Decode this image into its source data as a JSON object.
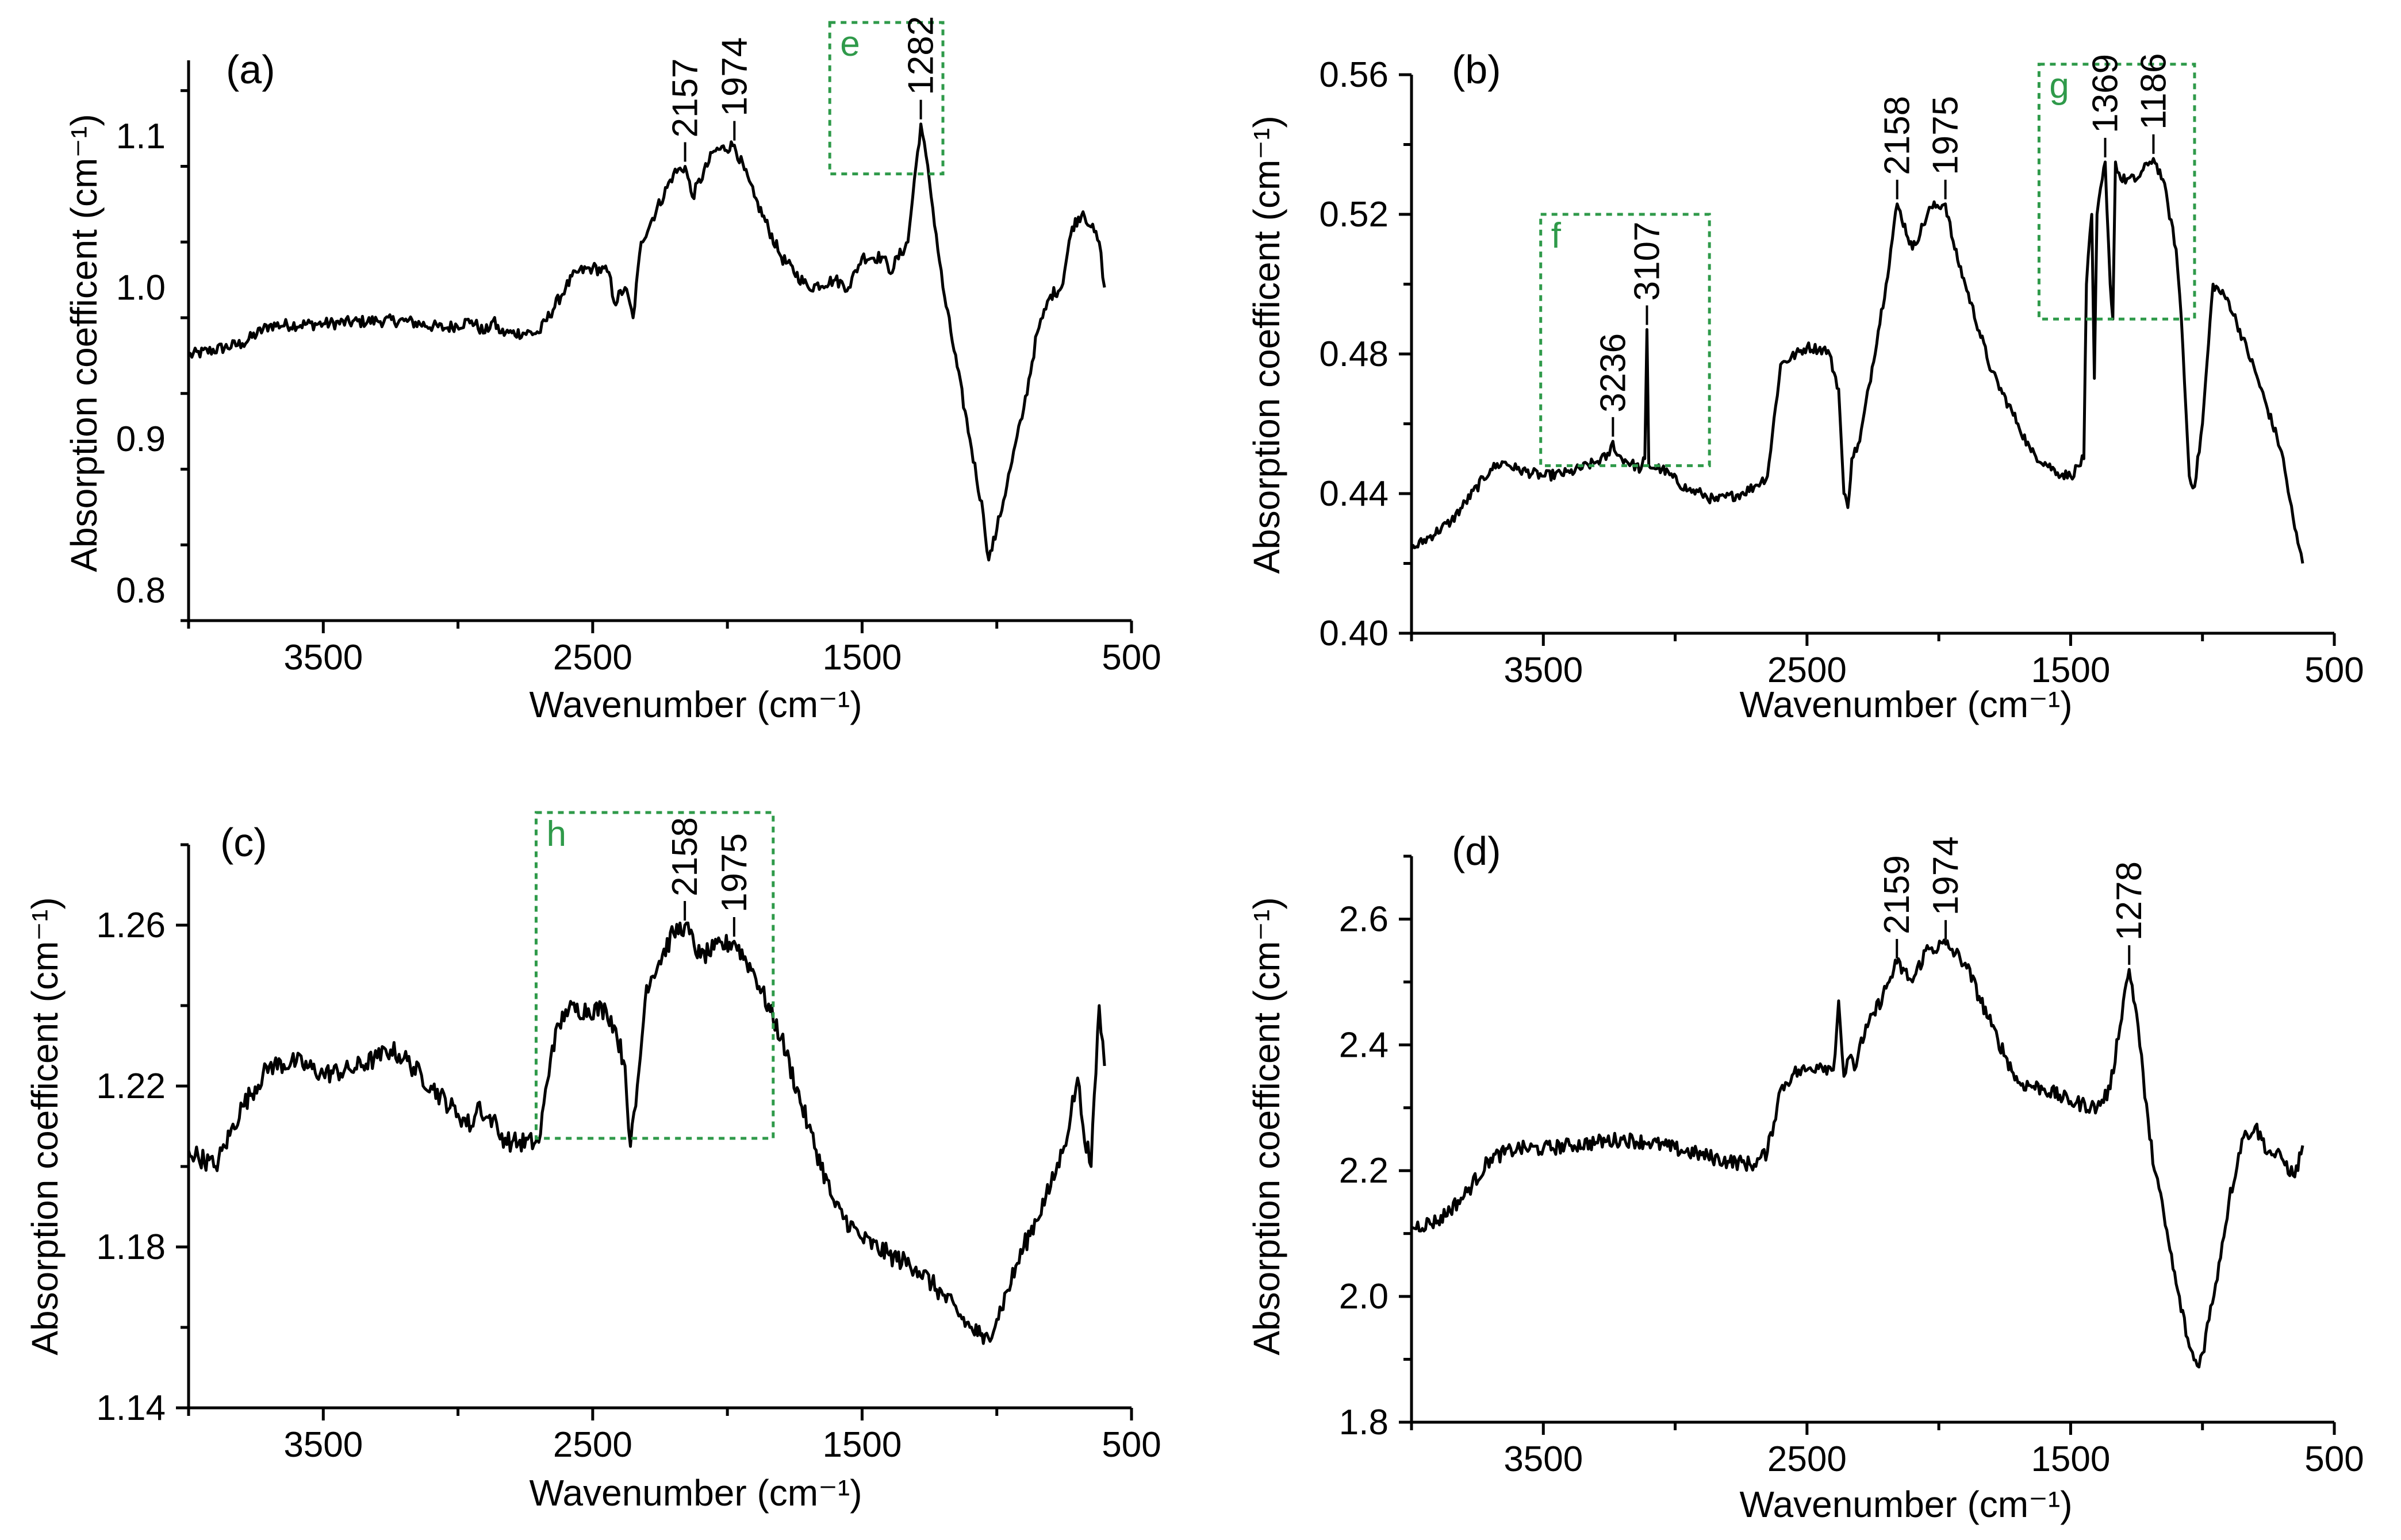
{
  "colors": {
    "line": "#000000",
    "inset": "#2f9a4a",
    "background": "#ffffff"
  },
  "chart_data": [
    {
      "type": "line",
      "panel": "(a)",
      "xlabel": "Wavenumber (cm⁻¹)",
      "ylabel": "Absorption coefficent (cm⁻¹)",
      "xlim": [
        4000,
        500
      ],
      "ylim": [
        0.78,
        1.15
      ],
      "xticks": [
        3500,
        2500,
        1500,
        500
      ],
      "yticks": [
        0.8,
        0.9,
        1.0,
        1.1
      ],
      "ytick_labels": [
        "0.8",
        "0.9",
        "1.0",
        "1.1"
      ],
      "series": [
        {
          "name": "spectrum",
          "noise": 0.004,
          "x": [
            4000,
            3800,
            3700,
            3500,
            3300,
            3200,
            3050,
            2950,
            2900,
            2870,
            2840,
            2800,
            2700,
            2600,
            2560,
            2500,
            2440,
            2420,
            2380,
            2350,
            2320,
            2200,
            2157,
            2130,
            2050,
            1974,
            1900,
            1800,
            1700,
            1600,
            1550,
            1500,
            1420,
            1400,
            1330,
            1300,
            1282,
            1250,
            1200,
            1100,
            1050,
            1030,
            1000,
            950,
            900,
            850,
            830,
            800,
            760,
            720,
            680,
            650,
            620,
            600
          ],
          "y": [
            0.955,
            0.963,
            0.975,
            0.976,
            0.978,
            0.978,
            0.973,
            0.978,
            0.97,
            0.978,
            0.97,
            0.97,
            0.97,
            1.0,
            1.01,
            1.013,
            1.01,
            0.99,
            1.0,
            0.98,
            1.03,
            1.075,
            1.08,
            1.06,
            1.09,
            1.094,
            1.06,
            1.02,
            1.0,
            1.005,
            1.0,
            1.02,
            1.02,
            1.01,
            1.03,
            1.08,
            1.108,
            1.07,
            1.0,
            0.9,
            0.85,
            0.82,
            0.84,
            0.88,
            0.92,
            0.97,
            0.98,
            0.995,
            1.0,
            1.04,
            1.05,
            1.04,
            1.03,
            1.0
          ]
        }
      ],
      "annotations": [
        {
          "label": "2157",
          "x": 2157,
          "y": 1.08
        },
        {
          "label": "1974",
          "x": 1974,
          "y": 1.094
        },
        {
          "label": "1282",
          "x": 1282,
          "y": 1.108
        }
      ],
      "insets": [
        {
          "label": "e",
          "x_range": [
            1620,
            1200
          ],
          "y_range": [
            1.075,
            1.175
          ]
        }
      ]
    },
    {
      "type": "line",
      "panel": "(b)",
      "xlabel": "Wavenumber (cm⁻¹)",
      "ylabel": "Absorption coefficent (cm⁻¹)",
      "xlim": [
        4000,
        500
      ],
      "ylim": [
        0.4,
        0.56
      ],
      "xticks": [
        3500,
        2500,
        1500,
        500
      ],
      "yticks": [
        0.4,
        0.44,
        0.48,
        0.52,
        0.56
      ],
      "ytick_labels": [
        "0.40",
        "0.44",
        "0.48",
        "0.52",
        "0.56"
      ],
      "series": [
        {
          "name": "spectrum",
          "noise": 0.0015,
          "x": [
            4000,
            3850,
            3700,
            3650,
            3600,
            3500,
            3400,
            3300,
            3250,
            3236,
            3220,
            3130,
            3115,
            3107,
            3100,
            3050,
            2950,
            2900,
            2850,
            2750,
            2700,
            2650,
            2600,
            2500,
            2420,
            2380,
            2360,
            2345,
            2330,
            2300,
            2200,
            2158,
            2100,
            2030,
            1975,
            1940,
            1900,
            1800,
            1700,
            1650,
            1550,
            1500,
            1450,
            1440,
            1420,
            1410,
            1400,
            1380,
            1369,
            1350,
            1340,
            1330,
            1310,
            1250,
            1200,
            1186,
            1150,
            1100,
            1080,
            1050,
            1030,
            1000,
            960,
            900,
            800,
            700,
            650,
            620
          ],
          "y": [
            0.424,
            0.432,
            0.447,
            0.449,
            0.447,
            0.445,
            0.446,
            0.449,
            0.451,
            0.455,
            0.451,
            0.447,
            0.45,
            0.487,
            0.448,
            0.447,
            0.441,
            0.44,
            0.438,
            0.44,
            0.442,
            0.445,
            0.477,
            0.482,
            0.481,
            0.47,
            0.44,
            0.436,
            0.45,
            0.455,
            0.5,
            0.523,
            0.51,
            0.522,
            0.523,
            0.51,
            0.5,
            0.475,
            0.46,
            0.452,
            0.446,
            0.445,
            0.45,
            0.5,
            0.52,
            0.473,
            0.52,
            0.53,
            0.535,
            0.5,
            0.49,
            0.535,
            0.53,
            0.53,
            0.535,
            0.536,
            0.53,
            0.51,
            0.49,
            0.445,
            0.442,
            0.46,
            0.5,
            0.495,
            0.475,
            0.452,
            0.43,
            0.42
          ]
        }
      ],
      "annotations": [
        {
          "label": "3236",
          "x": 3236,
          "y": 0.455
        },
        {
          "label": "3107",
          "x": 3107,
          "y": 0.487
        },
        {
          "label": "2158",
          "x": 2158,
          "y": 0.523
        },
        {
          "label": "1975",
          "x": 1975,
          "y": 0.523
        },
        {
          "label": "1369",
          "x": 1369,
          "y": 0.535
        },
        {
          "label": "1186",
          "x": 1186,
          "y": 0.536
        }
      ],
      "insets": [
        {
          "label": "f",
          "x_range": [
            3510,
            2870
          ],
          "y_range": [
            0.448,
            0.52
          ]
        },
        {
          "label": "g",
          "x_range": [
            1620,
            1030
          ],
          "y_range": [
            0.49,
            0.563
          ]
        }
      ]
    },
    {
      "type": "line",
      "panel": "(c)",
      "xlabel": "Wavenumber (cm⁻¹)",
      "ylabel": "Absorption coefficent (cm⁻¹)",
      "xlim": [
        4000,
        500
      ],
      "ylim": [
        1.14,
        1.28
      ],
      "xticks": [
        3500,
        2500,
        1500,
        500
      ],
      "yticks": [
        1.14,
        1.18,
        1.22,
        1.26
      ],
      "ytick_labels": [
        "1.14",
        "1.18",
        "1.22",
        "1.26"
      ],
      "series": [
        {
          "name": "spectrum",
          "noise": 0.0025,
          "x": [
            4000,
            3900,
            3800,
            3700,
            3600,
            3500,
            3400,
            3300,
            3250,
            3200,
            3100,
            3000,
            2950,
            2920,
            2900,
            2870,
            2850,
            2800,
            2700,
            2650,
            2600,
            2450,
            2420,
            2380,
            2360,
            2340,
            2300,
            2200,
            2158,
            2100,
            2050,
            1975,
            1900,
            1800,
            1700,
            1600,
            1500,
            1400,
            1300,
            1200,
            1100,
            1060,
            1050,
            1000,
            900,
            800,
            750,
            700,
            680,
            650,
            620,
            600
          ],
          "y": [
            1.204,
            1.2,
            1.215,
            1.225,
            1.226,
            1.223,
            1.224,
            1.227,
            1.229,
            1.227,
            1.22,
            1.213,
            1.21,
            1.216,
            1.212,
            1.212,
            1.208,
            1.206,
            1.206,
            1.23,
            1.239,
            1.239,
            1.235,
            1.225,
            1.205,
            1.215,
            1.245,
            1.258,
            1.26,
            1.252,
            1.254,
            1.256,
            1.248,
            1.232,
            1.21,
            1.19,
            1.182,
            1.178,
            1.175,
            1.168,
            1.16,
            1.158,
            1.156,
            1.162,
            1.18,
            1.195,
            1.205,
            1.222,
            1.21,
            1.2,
            1.24,
            1.225
          ]
        }
      ],
      "annotations": [
        {
          "label": "2158",
          "x": 2158,
          "y": 1.26
        },
        {
          "label": "1975",
          "x": 1975,
          "y": 1.256
        }
      ],
      "insets": [
        {
          "label": "h",
          "x_range": [
            2710,
            1830
          ],
          "y_range": [
            1.207,
            1.288
          ]
        }
      ]
    },
    {
      "type": "line",
      "panel": "(d)",
      "xlabel": "Wavenumber (cm⁻¹)",
      "ylabel": "Absorption coefficent (cm⁻¹)",
      "xlim": [
        4000,
        500
      ],
      "ylim": [
        1.8,
        2.7
      ],
      "xticks": [
        3500,
        2500,
        1500,
        500
      ],
      "yticks": [
        1.8,
        2.0,
        2.2,
        2.4,
        2.6
      ],
      "ytick_labels": [
        "1.8",
        "2.0",
        "2.2",
        "2.4",
        "2.6"
      ],
      "series": [
        {
          "name": "spectrum",
          "noise": 0.012,
          "x": [
            4000,
            3900,
            3800,
            3700,
            3600,
            3500,
            3400,
            3300,
            3200,
            3100,
            3000,
            2900,
            2800,
            2700,
            2650,
            2600,
            2550,
            2500,
            2450,
            2400,
            2380,
            2360,
            2340,
            2320,
            2300,
            2200,
            2159,
            2100,
            2050,
            1974,
            1900,
            1800,
            1700,
            1600,
            1500,
            1400,
            1350,
            1300,
            1278,
            1250,
            1200,
            1100,
            1050,
            1020,
            1000,
            950,
            900,
            850,
            800,
            750,
            700,
            650,
            620
          ],
          "y": [
            2.11,
            2.12,
            2.16,
            2.22,
            2.235,
            2.235,
            2.24,
            2.245,
            2.25,
            2.245,
            2.235,
            2.225,
            2.215,
            2.21,
            2.23,
            2.33,
            2.355,
            2.36,
            2.37,
            2.36,
            2.47,
            2.35,
            2.38,
            2.36,
            2.4,
            2.49,
            2.53,
            2.5,
            2.55,
            2.56,
            2.53,
            2.43,
            2.34,
            2.33,
            2.31,
            2.3,
            2.33,
            2.47,
            2.52,
            2.45,
            2.25,
            2.02,
            1.92,
            1.89,
            1.91,
            2.02,
            2.15,
            2.25,
            2.27,
            2.23,
            2.22,
            2.19,
            2.24
          ]
        }
      ],
      "annotations": [
        {
          "label": "2159",
          "x": 2159,
          "y": 2.53
        },
        {
          "label": "1974",
          "x": 1974,
          "y": 2.56
        },
        {
          "label": "1278",
          "x": 1278,
          "y": 2.52
        }
      ],
      "insets": []
    }
  ]
}
